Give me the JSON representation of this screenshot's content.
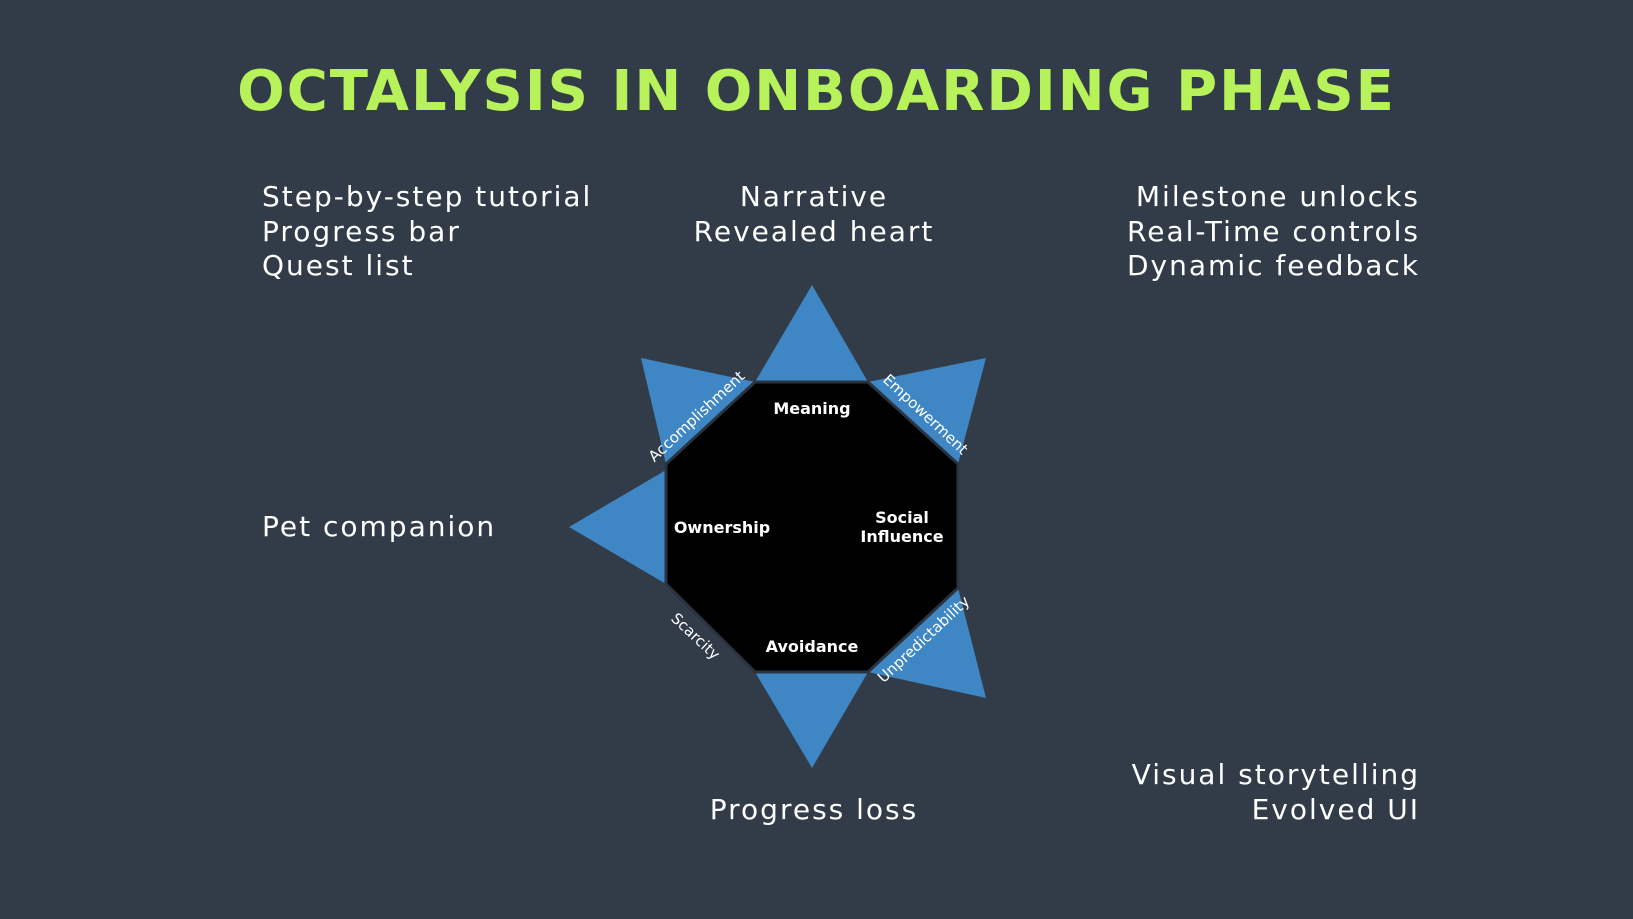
{
  "title": "OCTALYSIS IN ONBOARDING PHASE",
  "colors": {
    "background": "#323c49",
    "title": "#b8f25a",
    "spike": "#3f86c4",
    "octagon": "#000000",
    "text": "#ffffff"
  },
  "notes": {
    "top_left": [
      "Step-by-step tutorial",
      "Progress bar",
      "Quest list"
    ],
    "top_center": [
      "Narrative",
      "Revealed heart"
    ],
    "top_right": [
      "Milestone unlocks",
      "Real-Time controls",
      "Dynamic feedback"
    ],
    "mid_left": [
      "Pet companion"
    ],
    "bottom_center": [
      "Progress loss"
    ],
    "bottom_right": [
      "Visual storytelling",
      "Evolved UI"
    ]
  },
  "octagon": {
    "core_drives": {
      "top": "Meaning",
      "left": "Ownership",
      "right_line1": "Social",
      "right_line2": "Influence",
      "bottom": "Avoidance"
    },
    "side_labels": {
      "upper_left": "Accomplishment",
      "upper_right": "Empowerment",
      "lower_left": "Scarcity",
      "lower_right": "Unpredictability"
    }
  }
}
